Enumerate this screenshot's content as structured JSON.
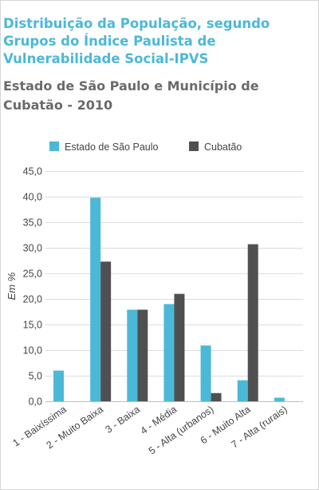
{
  "chart_data": {
    "type": "bar",
    "title": "Distribuição da População, segundo Grupos do Índice Paulista de Vulnerabilidade Social-IPVS",
    "subtitle": "Estado de São Paulo e Município de Cubatão - 2010",
    "xlabel": "",
    "ylabel": "Em %",
    "ylim": [
      0,
      45
    ],
    "yticks": [
      0,
      5,
      10,
      15,
      20,
      25,
      30,
      35,
      40,
      45
    ],
    "ytick_labels": [
      "0,0",
      "5,0",
      "10,0",
      "15,0",
      "20,0",
      "25,0",
      "30,0",
      "35,0",
      "40,0",
      "45,0"
    ],
    "grid": true,
    "legend_position": "top",
    "categories": [
      "1 - Baixíssima",
      "2 - Muito Baixa",
      "3 - Baixa",
      "4 - Média",
      "5 - Alta (urbanos)",
      "6 - Muito Alta",
      "7 - Alta (rurais)"
    ],
    "series": [
      {
        "name": "Estado de São Paulo",
        "color": "#4cb8d8",
        "values": [
          6.0,
          39.8,
          17.9,
          19.0,
          10.9,
          4.1,
          0.7
        ]
      },
      {
        "name": "Cubatão",
        "color": "#505050",
        "values": [
          0.0,
          27.3,
          17.9,
          21.0,
          1.6,
          30.7,
          0.0
        ]
      }
    ]
  }
}
